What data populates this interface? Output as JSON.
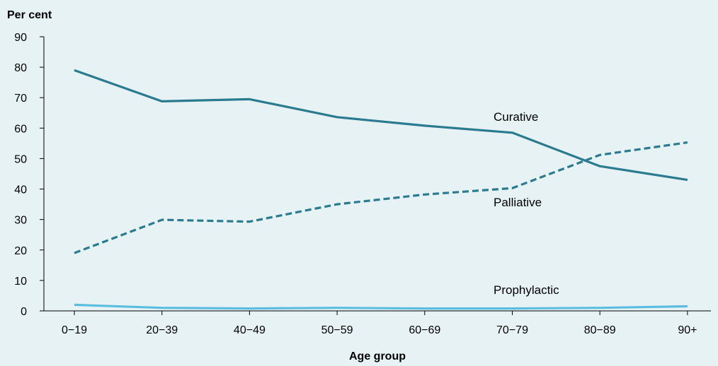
{
  "chart_data": {
    "type": "line",
    "title": "",
    "ylabel": "Per cent",
    "xlabel": "Age group",
    "categories": [
      "0−19",
      "20−39",
      "40−49",
      "50−59",
      "60−69",
      "70−79",
      "80−89",
      "90+"
    ],
    "ylim": [
      0,
      90
    ],
    "yticks": [
      0,
      10,
      20,
      30,
      40,
      50,
      60,
      70,
      80,
      90
    ],
    "grid": false,
    "legend": "none",
    "series": [
      {
        "name": "Curative",
        "values": [
          79,
          68.8,
          69.5,
          63.6,
          60.8,
          58.5,
          47.5,
          43
        ],
        "color": "#2a7a90",
        "dash": "solid"
      },
      {
        "name": "Palliative",
        "values": [
          19,
          29.9,
          29.3,
          35,
          38.2,
          40.3,
          51.2,
          55.3
        ],
        "color": "#2a7a90",
        "dash": "dashed"
      },
      {
        "name": "Prophylactic",
        "values": [
          2,
          1,
          0.8,
          1,
          0.8,
          0.8,
          1,
          1.5
        ],
        "color": "#5bbde0",
        "dash": "solid"
      }
    ]
  }
}
